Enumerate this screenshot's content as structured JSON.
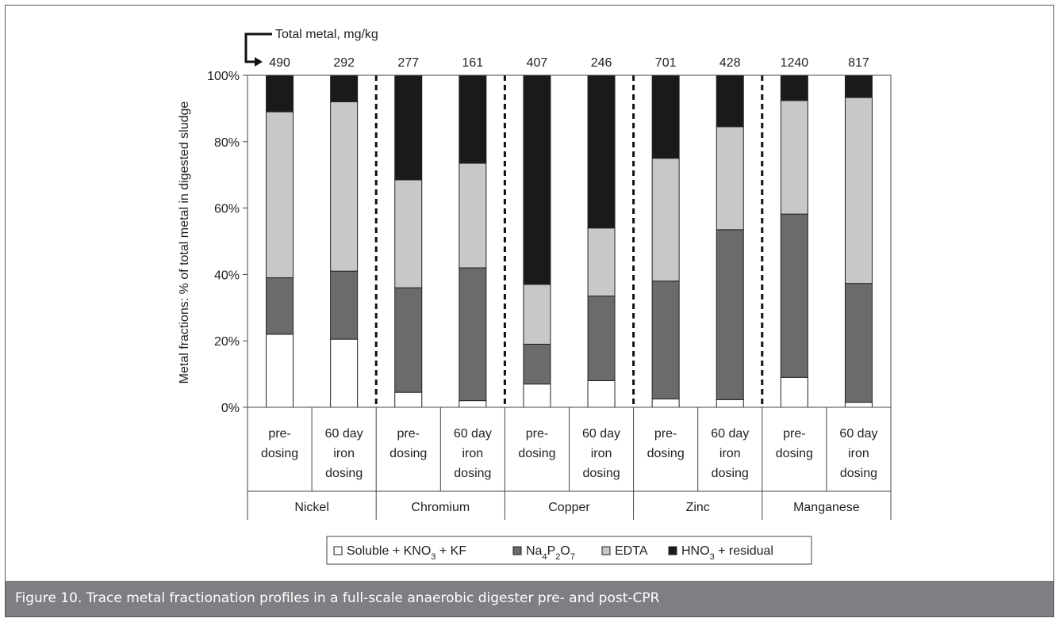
{
  "figure": {
    "caption": "Figure 10. Trace metal fractionation profiles in a full-scale anaerobic digester pre- and post-CPR"
  },
  "chart_data": {
    "type": "bar",
    "stacked": true,
    "ylabel": "Metal fractions: % of total metal in digested sludge",
    "ylim": [
      0,
      100
    ],
    "yticks": [
      "0%",
      "20%",
      "40%",
      "60%",
      "80%",
      "100%"
    ],
    "total_label": "Total metal, mg/kg",
    "bars": [
      {
        "group": "Nickel",
        "label": [
          "pre-",
          "dosing"
        ],
        "total": "490"
      },
      {
        "group": "Nickel",
        "label": [
          "60 day",
          "iron",
          "dosing"
        ],
        "total": "292"
      },
      {
        "group": "Chromium",
        "label": [
          "pre-",
          "dosing"
        ],
        "total": "277"
      },
      {
        "group": "Chromium",
        "label": [
          "60 day",
          "iron",
          "dosing"
        ],
        "total": "161"
      },
      {
        "group": "Copper",
        "label": [
          "pre-",
          "dosing"
        ],
        "total": "407"
      },
      {
        "group": "Copper",
        "label": [
          "60 day",
          "iron",
          "dosing"
        ],
        "total": "246"
      },
      {
        "group": "Zinc",
        "label": [
          "pre-",
          "dosing"
        ],
        "total": "701"
      },
      {
        "group": "Zinc",
        "label": [
          "60 day",
          "iron",
          "dosing"
        ],
        "total": "428"
      },
      {
        "group": "Manganese",
        "label": [
          "pre-",
          "dosing"
        ],
        "total": "1240"
      },
      {
        "group": "Manganese",
        "label": [
          "60 day",
          "iron",
          "dosing"
        ],
        "total": "817"
      }
    ],
    "groups": [
      "Nickel",
      "Chromium",
      "Copper",
      "Zinc",
      "Manganese"
    ],
    "series": [
      {
        "name": "Soluble + KNO₃ + KF",
        "color": "#ffffff",
        "values": [
          22,
          20.5,
          4.5,
          2,
          7,
          8,
          2.5,
          2.3,
          9,
          1.5
        ]
      },
      {
        "name": "Na₄P₂O₇",
        "color": "#6b6b6b",
        "values": [
          17,
          20.5,
          31.5,
          40,
          12,
          25.5,
          35.5,
          51.2,
          49.2,
          35.8
        ]
      },
      {
        "name": "EDTA",
        "color": "#c8c8c8",
        "values": [
          50,
          51,
          32.5,
          31.5,
          18,
          20.5,
          37,
          31,
          34.2,
          56
        ]
      },
      {
        "name": "HNO₃ + residual",
        "color": "#1a1a1a",
        "values": [
          11,
          8,
          31.5,
          26.5,
          63,
          46,
          25,
          15.5,
          7.6,
          6.7
        ]
      }
    ]
  }
}
